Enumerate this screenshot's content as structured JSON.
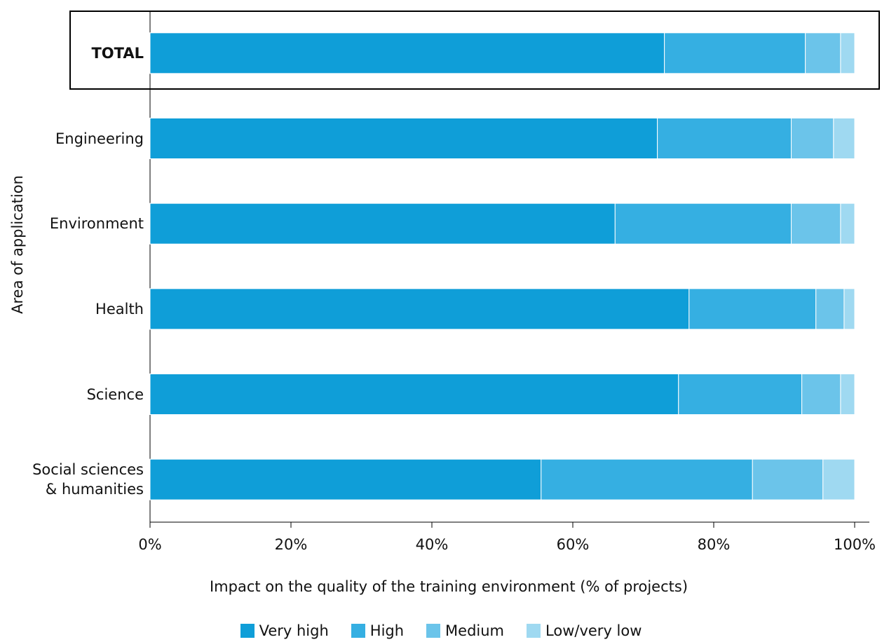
{
  "chart_data": {
    "type": "stacked_bar_horizontal",
    "categories": [
      "TOTAL",
      "Engineering",
      "Environment",
      "Health",
      "Science",
      "Social sciences\n& humanities"
    ],
    "series": [
      {
        "name": "Very high",
        "color": "#0f9ed8",
        "values": [
          73,
          72,
          66,
          76.5,
          75,
          55.5
        ]
      },
      {
        "name": "High",
        "color": "#35afe2",
        "values": [
          20,
          19,
          25,
          18,
          17.5,
          30
        ]
      },
      {
        "name": "Medium",
        "color": "#6bc4ea",
        "values": [
          5,
          6,
          7,
          4,
          5.5,
          10
        ]
      },
      {
        "name": "Low/very low",
        "color": "#9fd9f1",
        "values": [
          2,
          3,
          2,
          1.5,
          2,
          4.5
        ]
      }
    ],
    "xlim": [
      0,
      100
    ],
    "xticks": [
      {
        "value": 0,
        "label": "0%"
      },
      {
        "value": 20,
        "label": "20%"
      },
      {
        "value": 40,
        "label": "40%"
      },
      {
        "value": 60,
        "label": "60%"
      },
      {
        "value": 80,
        "label": "80%"
      },
      {
        "value": 100,
        "label": "100%"
      }
    ],
    "xlabel": "Impact on the quality of the training environment (% of projects)",
    "ylabel": "Area of application",
    "legend": "bottom"
  }
}
